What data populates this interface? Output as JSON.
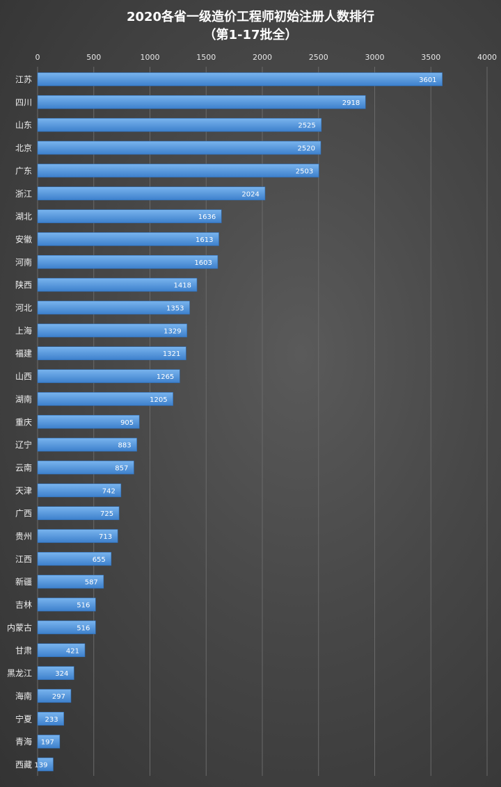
{
  "chart_data": {
    "type": "bar",
    "orientation": "horizontal",
    "title": "2020各省一级造价工程师初始注册人数排行",
    "subtitle": "（第1-17批全）",
    "categories": [
      "江苏",
      "四川",
      "山东",
      "北京",
      "广东",
      "浙江",
      "湖北",
      "安徽",
      "河南",
      "陕西",
      "河北",
      "上海",
      "福建",
      "山西",
      "湖南",
      "重庆",
      "辽宁",
      "云南",
      "天津",
      "广西",
      "贵州",
      "江西",
      "新疆",
      "吉林",
      "内蒙古",
      "甘肃",
      "黑龙江",
      "海南",
      "宁夏",
      "青海",
      "西藏"
    ],
    "values": [
      3601,
      2918,
      2525,
      2520,
      2503,
      2024,
      1636,
      1613,
      1603,
      1418,
      1353,
      1329,
      1321,
      1265,
      1205,
      905,
      883,
      857,
      742,
      725,
      713,
      655,
      587,
      516,
      516,
      421,
      324,
      297,
      233,
      197,
      139
    ],
    "xlim": [
      0,
      4000
    ],
    "xticks": [
      0,
      500,
      1000,
      1500,
      2000,
      2500,
      3000,
      3500,
      4000
    ],
    "xaxis_position": "top",
    "grid": true,
    "data_labels": true,
    "colors": {
      "bar_light": "#79b4ee",
      "bar_dark": "#3d80cc",
      "grid": "#6a6a6a"
    }
  }
}
